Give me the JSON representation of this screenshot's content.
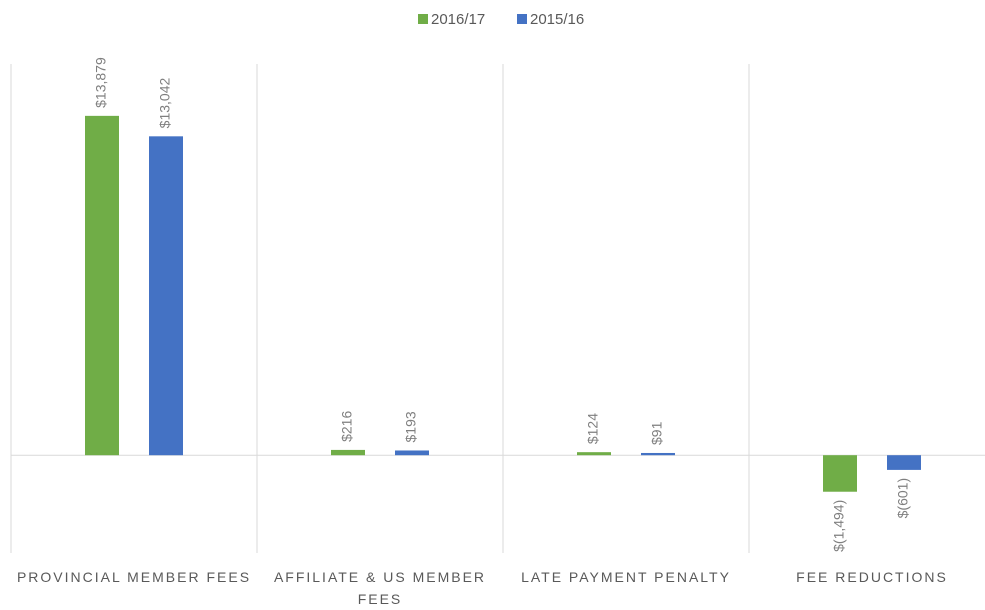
{
  "chart_data": {
    "type": "bar",
    "categories": [
      "PROVINCIAL MEMBER FEES",
      "AFFILIATE & US MEMBER FEES",
      "LATE PAYMENT PENALTY",
      "FEE REDUCTIONS"
    ],
    "series": [
      {
        "name": "2016/17",
        "color": "#70ad47",
        "values": [
          13879,
          216,
          124,
          -1494
        ],
        "value_labels": [
          "$13,879",
          "$216",
          "$124",
          "$(1,494)"
        ]
      },
      {
        "name": "2015/16",
        "color": "#4472c4",
        "values": [
          13042,
          193,
          91,
          -601
        ],
        "value_labels": [
          "$13,042",
          "$193",
          "$91",
          "$(601)"
        ]
      }
    ],
    "ylim": [
      -4000,
      16000
    ],
    "legend": "top"
  }
}
